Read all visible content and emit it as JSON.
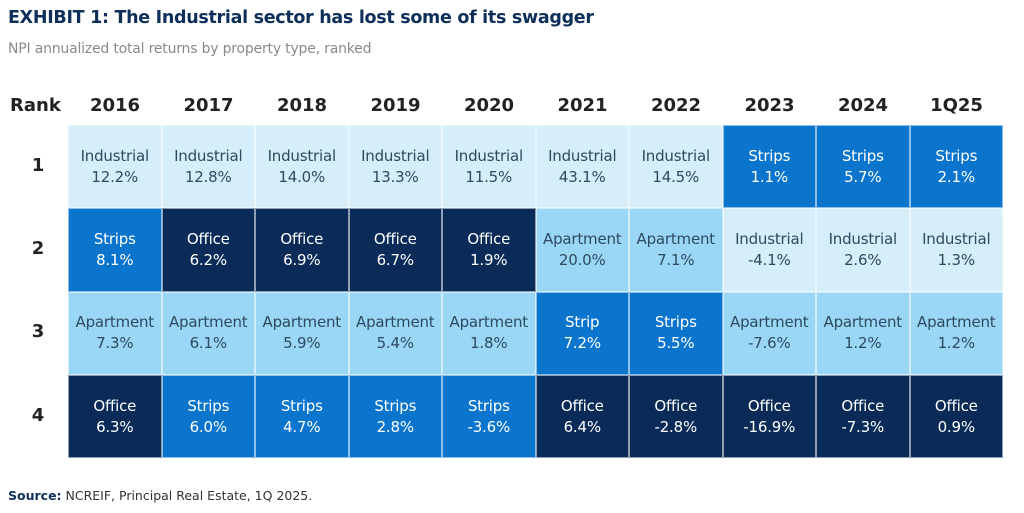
{
  "title": "EXHIBIT 1: The Industrial sector has lost some of its swagger",
  "subtitle": "NPI annualized total returns by property type, ranked",
  "source_label": "Source:",
  "source_text": " NCREIF, Principal Real Estate, 1Q 2025.",
  "colors": {
    "Industrial": "#d5eefa",
    "Apartment": "#9ad7f6",
    "Strips": "#0b74cc",
    "Strip": "#0b74cc",
    "Office": "#0a2b57"
  },
  "chart_data": {
    "type": "table",
    "rank_header": "Rank",
    "columns": [
      "2016",
      "2017",
      "2018",
      "2019",
      "2020",
      "2021",
      "2022",
      "2023",
      "2024",
      "1Q25"
    ],
    "ranks": [
      "1",
      "2",
      "3",
      "4"
    ],
    "rows": [
      [
        [
          "Industrial",
          "12.2%"
        ],
        [
          "Industrial",
          "12.8%"
        ],
        [
          "Industrial",
          "14.0%"
        ],
        [
          "Industrial",
          "13.3%"
        ],
        [
          "Industrial",
          "11.5%"
        ],
        [
          "Industrial",
          "43.1%"
        ],
        [
          "Industrial",
          "14.5%"
        ],
        [
          "Strips",
          "1.1%"
        ],
        [
          "Strips",
          "5.7%"
        ],
        [
          "Strips",
          "2.1%"
        ]
      ],
      [
        [
          "Strips",
          "8.1%"
        ],
        [
          "Office",
          "6.2%"
        ],
        [
          "Office",
          "6.9%"
        ],
        [
          "Office",
          "6.7%"
        ],
        [
          "Office",
          "1.9%"
        ],
        [
          "Apartment",
          "20.0%"
        ],
        [
          "Apartment",
          "7.1%"
        ],
        [
          "Industrial",
          "-4.1%"
        ],
        [
          "Industrial",
          "2.6%"
        ],
        [
          "Industrial",
          "1.3%"
        ]
      ],
      [
        [
          "Apartment",
          "7.3%"
        ],
        [
          "Apartment",
          "6.1%"
        ],
        [
          "Apartment",
          "5.9%"
        ],
        [
          "Apartment",
          "5.4%"
        ],
        [
          "Apartment",
          "1.8%"
        ],
        [
          "Strip",
          "7.2%"
        ],
        [
          "Strips",
          "5.5%"
        ],
        [
          "Apartment",
          "-7.6%"
        ],
        [
          "Apartment",
          "1.2%"
        ],
        [
          "Apartment",
          "1.2%"
        ]
      ],
      [
        [
          "Office",
          "6.3%"
        ],
        [
          "Strips",
          "6.0%"
        ],
        [
          "Strips",
          "4.7%"
        ],
        [
          "Strips",
          "2.8%"
        ],
        [
          "Strips",
          "-3.6%"
        ],
        [
          "Office",
          "6.4%"
        ],
        [
          "Office",
          "-2.8%"
        ],
        [
          "Office",
          "-16.9%"
        ],
        [
          "Office",
          "-7.3%"
        ],
        [
          "Office",
          "0.9%"
        ]
      ]
    ]
  }
}
